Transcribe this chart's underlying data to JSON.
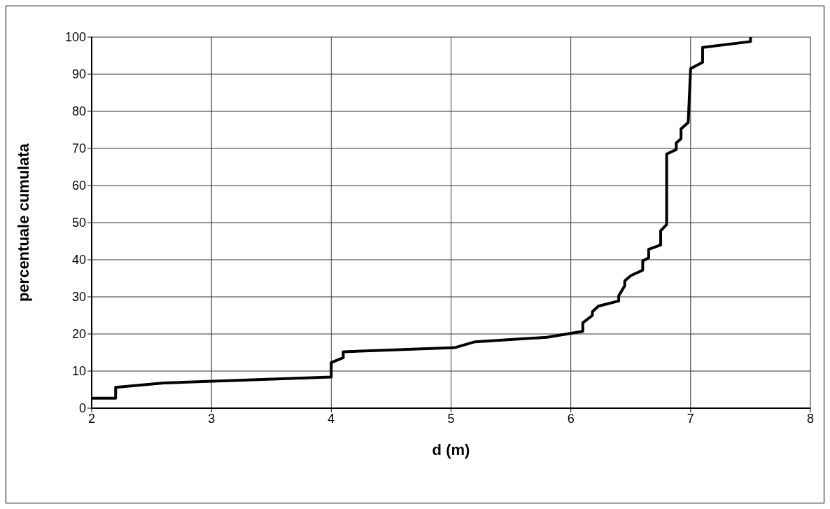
{
  "chart_data": {
    "type": "line",
    "xlabel": "d (m)",
    "ylabel": "percentuale cumulata",
    "color": "#000000",
    "x": [
      2,
      2.2,
      2.2,
      2.6,
      4.0,
      4.0,
      4.1,
      4.1,
      5.03,
      5.2,
      5.8,
      6.1,
      6.1,
      6.18,
      6.18,
      6.23,
      6.4,
      6.4,
      6.45,
      6.45,
      6.5,
      6.6,
      6.6,
      6.65,
      6.65,
      6.75,
      6.75,
      6.8,
      6.8,
      6.88,
      6.88,
      6.92,
      6.92,
      6.98,
      7.0,
      7.1,
      7.1,
      7.5,
      7.5
    ],
    "values": [
      2.7,
      2.7,
      5.6,
      6.8,
      8.4,
      12.3,
      13.6,
      15.2,
      16.3,
      17.9,
      19.1,
      20.7,
      23.0,
      25.0,
      26.0,
      27.5,
      28.9,
      30.3,
      33.0,
      34.3,
      35.7,
      37.2,
      39.7,
      40.5,
      42.8,
      44.0,
      47.8,
      49.5,
      68.5,
      69.7,
      71.5,
      72.6,
      75.3,
      77.0,
      91.5,
      93.2,
      97.2,
      98.8,
      100
    ],
    "xlim": [
      2,
      8
    ],
    "xticks": [
      2,
      3,
      4,
      5,
      6,
      7,
      8
    ],
    "ylim": [
      0,
      100
    ],
    "yticks": [
      0,
      10,
      20,
      30,
      40,
      50,
      60,
      70,
      80,
      90,
      100
    ],
    "grid": true,
    "marker": "none",
    "line_style": "solid"
  }
}
